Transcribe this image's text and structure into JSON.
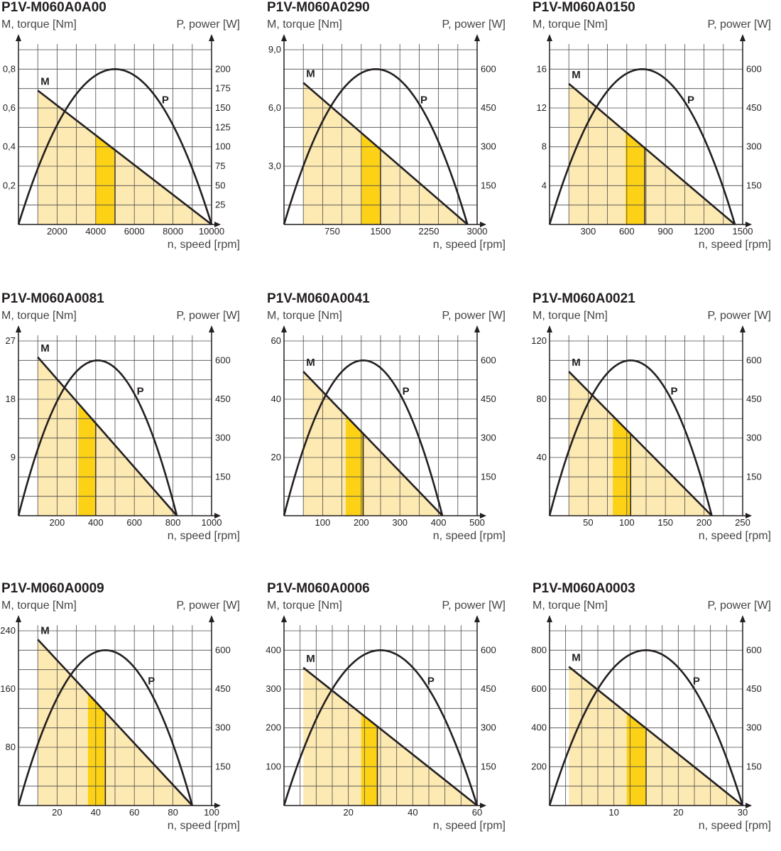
{
  "colors": {
    "shade": "#fde9b2",
    "band": "#fcd116",
    "line": "#231f20",
    "grid": "#4a4a4a"
  },
  "common": {
    "ylabel": "M, torque [Nm]",
    "y2label": "P, power [W]",
    "xlabel": "n, speed [rpm]",
    "m_label": "M",
    "p_label": "P"
  },
  "chart_data": [
    {
      "type": "line",
      "title": "P1V-M060A0A00",
      "xlim": [
        0,
        10000
      ],
      "x_ticks": [
        2000,
        4000,
        6000,
        8000,
        10000
      ],
      "x_tick_labels": [
        "2000",
        "4000",
        "6000",
        "8000",
        "10000"
      ],
      "ylim": [
        0,
        0.9
      ],
      "y_ticks": [
        0.2,
        0.4,
        0.6,
        0.8
      ],
      "y_tick_labels": [
        "0,2",
        "0,4",
        "0,6",
        "0,8"
      ],
      "y2lim": [
        0,
        225
      ],
      "y2_ticks": [
        25,
        50,
        75,
        100,
        125,
        150,
        175,
        200
      ],
      "y2_tick_labels": [
        "25",
        "50",
        "75",
        "100",
        "125",
        "150",
        "175",
        "200"
      ],
      "grid": {
        "x_step": 1000,
        "y_divisions": 9
      },
      "series": [
        {
          "name": "M",
          "axis": "left",
          "x": [
            1000,
            10000
          ],
          "y": [
            0.69,
            0
          ]
        },
        {
          "name": "P",
          "axis": "right",
          "x": [
            0,
            5000,
            10000
          ],
          "y": [
            0,
            200,
            0
          ]
        }
      ],
      "shade_x": [
        1000,
        10000
      ],
      "band_x": [
        4000,
        5000
      ]
    },
    {
      "type": "line",
      "title": "P1V-M060A0290",
      "xlim": [
        0,
        3000
      ],
      "x_ticks": [
        750,
        1500,
        2250,
        3000
      ],
      "x_tick_labels": [
        "750",
        "1500",
        "2250",
        "3000"
      ],
      "ylim": [
        0,
        9
      ],
      "y_ticks": [
        3,
        6,
        9
      ],
      "y_tick_labels": [
        "3,0",
        "6,0",
        "9,0"
      ],
      "y2lim": [
        0,
        675
      ],
      "y2_ticks": [
        150,
        300,
        450,
        600
      ],
      "y2_tick_labels": [
        "150",
        "300",
        "450",
        "600"
      ],
      "grid": {
        "x_step": 300,
        "y_divisions": 9
      },
      "series": [
        {
          "name": "M",
          "axis": "left",
          "x": [
            300,
            2850
          ],
          "y": [
            7.3,
            0
          ]
        },
        {
          "name": "P",
          "axis": "right",
          "x": [
            0,
            1425,
            2850
          ],
          "y": [
            0,
            600,
            0
          ]
        }
      ],
      "shade_x": [
        300,
        2850
      ],
      "band_x": [
        1200,
        1500
      ]
    },
    {
      "type": "line",
      "title": "P1V-M060A0150",
      "xlim": [
        0,
        1500
      ],
      "x_ticks": [
        300,
        600,
        900,
        1200,
        1500
      ],
      "x_tick_labels": [
        "300",
        "600",
        "900",
        "1200",
        "1500"
      ],
      "ylim": [
        0,
        18
      ],
      "y_ticks": [
        4,
        8,
        12,
        16
      ],
      "y_tick_labels": [
        "4",
        "8",
        "12",
        "16"
      ],
      "y2lim": [
        0,
        675
      ],
      "y2_ticks": [
        150,
        300,
        450,
        600
      ],
      "y2_tick_labels": [
        "150",
        "300",
        "450",
        "600"
      ],
      "grid": {
        "x_step": 150,
        "y_divisions": 9
      },
      "series": [
        {
          "name": "M",
          "axis": "left",
          "x": [
            150,
            1440
          ],
          "y": [
            14.5,
            0
          ]
        },
        {
          "name": "P",
          "axis": "right",
          "x": [
            0,
            720,
            1440
          ],
          "y": [
            0,
            600,
            0
          ]
        }
      ],
      "shade_x": [
        150,
        1440
      ],
      "band_x": [
        590,
        740
      ]
    },
    {
      "type": "line",
      "title": "P1V-M060A0081",
      "xlim": [
        0,
        1000
      ],
      "x_ticks": [
        200,
        400,
        600,
        800,
        1000
      ],
      "x_tick_labels": [
        "200",
        "400",
        "600",
        "800",
        "1000"
      ],
      "ylim": [
        0,
        27
      ],
      "y_ticks": [
        9,
        18,
        27
      ],
      "y_tick_labels": [
        "9",
        "18",
        "27"
      ],
      "y2lim": [
        0,
        675
      ],
      "y2_ticks": [
        150,
        300,
        450,
        600
      ],
      "y2_tick_labels": [
        "150",
        "300",
        "450",
        "600"
      ],
      "grid": {
        "x_step": 100,
        "y_divisions": 9
      },
      "series": [
        {
          "name": "M",
          "axis": "left",
          "x": [
            100,
            820
          ],
          "y": [
            24.5,
            0
          ]
        },
        {
          "name": "P",
          "axis": "right",
          "x": [
            0,
            410,
            820
          ],
          "y": [
            0,
            600,
            0
          ]
        }
      ],
      "shade_x": [
        100,
        820
      ],
      "band_x": [
        310,
        400
      ]
    },
    {
      "type": "line",
      "title": "P1V-M060A0041",
      "xlim": [
        0,
        500
      ],
      "x_ticks": [
        100,
        200,
        300,
        400,
        500
      ],
      "x_tick_labels": [
        "100",
        "200",
        "300",
        "400",
        "500"
      ],
      "ylim": [
        0,
        60
      ],
      "y_ticks": [
        20,
        40,
        60
      ],
      "y_tick_labels": [
        "20",
        "40",
        "60"
      ],
      "y2lim": [
        0,
        675
      ],
      "y2_ticks": [
        150,
        300,
        450,
        600
      ],
      "y2_tick_labels": [
        "150",
        "300",
        "450",
        "600"
      ],
      "grid": {
        "x_step": 50,
        "y_divisions": 9
      },
      "series": [
        {
          "name": "M",
          "axis": "left",
          "x": [
            50,
            410
          ],
          "y": [
            49.5,
            0
          ]
        },
        {
          "name": "P",
          "axis": "right",
          "x": [
            0,
            205,
            410
          ],
          "y": [
            0,
            600,
            0
          ]
        }
      ],
      "shade_x": [
        50,
        410
      ],
      "band_x": [
        160,
        205
      ]
    },
    {
      "type": "line",
      "title": "P1V-M060A0021",
      "xlim": [
        0,
        250
      ],
      "x_ticks": [
        50,
        100,
        150,
        200,
        250
      ],
      "x_tick_labels": [
        "50",
        "100",
        "150",
        "200",
        "250"
      ],
      "ylim": [
        0,
        120
      ],
      "y_ticks": [
        40,
        80,
        120
      ],
      "y_tick_labels": [
        "40",
        "80",
        "120"
      ],
      "y2lim": [
        0,
        675
      ],
      "y2_ticks": [
        150,
        300,
        450,
        600
      ],
      "y2_tick_labels": [
        "150",
        "300",
        "450",
        "600"
      ],
      "grid": {
        "x_step": 25,
        "y_divisions": 9
      },
      "series": [
        {
          "name": "M",
          "axis": "left",
          "x": [
            25,
            210
          ],
          "y": [
            99,
            0
          ]
        },
        {
          "name": "P",
          "axis": "right",
          "x": [
            0,
            105,
            210
          ],
          "y": [
            0,
            600,
            0
          ]
        }
      ],
      "shade_x": [
        25,
        210
      ],
      "band_x": [
        82,
        105
      ]
    },
    {
      "type": "line",
      "title": "P1V-M060A0009",
      "xlim": [
        0,
        100
      ],
      "x_ticks": [
        20,
        40,
        60,
        80,
        100
      ],
      "x_tick_labels": [
        "20",
        "40",
        "60",
        "80",
        "100"
      ],
      "ylim": [
        0,
        240
      ],
      "y_ticks": [
        80,
        160,
        240
      ],
      "y_tick_labels": [
        "80",
        "160",
        "240"
      ],
      "y2lim": [
        0,
        675
      ],
      "y2_ticks": [
        150,
        300,
        450,
        600
      ],
      "y2_tick_labels": [
        "150",
        "300",
        "450",
        "600"
      ],
      "grid": {
        "x_step": 10,
        "y_divisions": 9
      },
      "series": [
        {
          "name": "M",
          "axis": "left",
          "x": [
            10,
            90
          ],
          "y": [
            228,
            0
          ]
        },
        {
          "name": "P",
          "axis": "right",
          "x": [
            0,
            45,
            90
          ],
          "y": [
            0,
            600,
            0
          ]
        }
      ],
      "shade_x": [
        10,
        90
      ],
      "band_x": [
        36,
        45
      ]
    },
    {
      "type": "line",
      "title": "P1V-M060A0006",
      "xlim": [
        0,
        60
      ],
      "x_ticks": [
        20,
        40,
        60
      ],
      "x_tick_labels": [
        "20",
        "40",
        "60"
      ],
      "ylim": [
        0,
        450
      ],
      "y_ticks": [
        100,
        200,
        300,
        400
      ],
      "y_tick_labels": [
        "100",
        "200",
        "300",
        "400"
      ],
      "y2lim": [
        0,
        675
      ],
      "y2_ticks": [
        150,
        300,
        450,
        600
      ],
      "y2_tick_labels": [
        "150",
        "300",
        "450",
        "600"
      ],
      "grid": {
        "x_step": 5,
        "y_divisions": 9
      },
      "series": [
        {
          "name": "M",
          "axis": "left",
          "x": [
            6,
            60
          ],
          "y": [
            355,
            0
          ]
        },
        {
          "name": "P",
          "axis": "right",
          "x": [
            0,
            30,
            60
          ],
          "y": [
            0,
            600,
            0
          ]
        }
      ],
      "shade_x": [
        6,
        60
      ],
      "band_x": [
        24,
        29
      ]
    },
    {
      "type": "line",
      "title": "P1V-M060A0003",
      "xlim": [
        0,
        30
      ],
      "x_ticks": [
        10,
        20,
        30
      ],
      "x_tick_labels": [
        "10",
        "20",
        "30"
      ],
      "ylim": [
        0,
        900
      ],
      "y_ticks": [
        200,
        400,
        600,
        800
      ],
      "y_tick_labels": [
        "200",
        "400",
        "600",
        "800"
      ],
      "y2lim": [
        0,
        675
      ],
      "y2_ticks": [
        150,
        300,
        450,
        600
      ],
      "y2_tick_labels": [
        "150",
        "300",
        "450",
        "600"
      ],
      "grid": {
        "x_step": 2.5,
        "y_divisions": 9
      },
      "series": [
        {
          "name": "M",
          "axis": "left",
          "x": [
            3,
            30
          ],
          "y": [
            715,
            0
          ]
        },
        {
          "name": "P",
          "axis": "right",
          "x": [
            0,
            15,
            30
          ],
          "y": [
            0,
            600,
            0
          ]
        }
      ],
      "shade_x": [
        3,
        30
      ],
      "band_x": [
        12,
        15
      ]
    }
  ]
}
